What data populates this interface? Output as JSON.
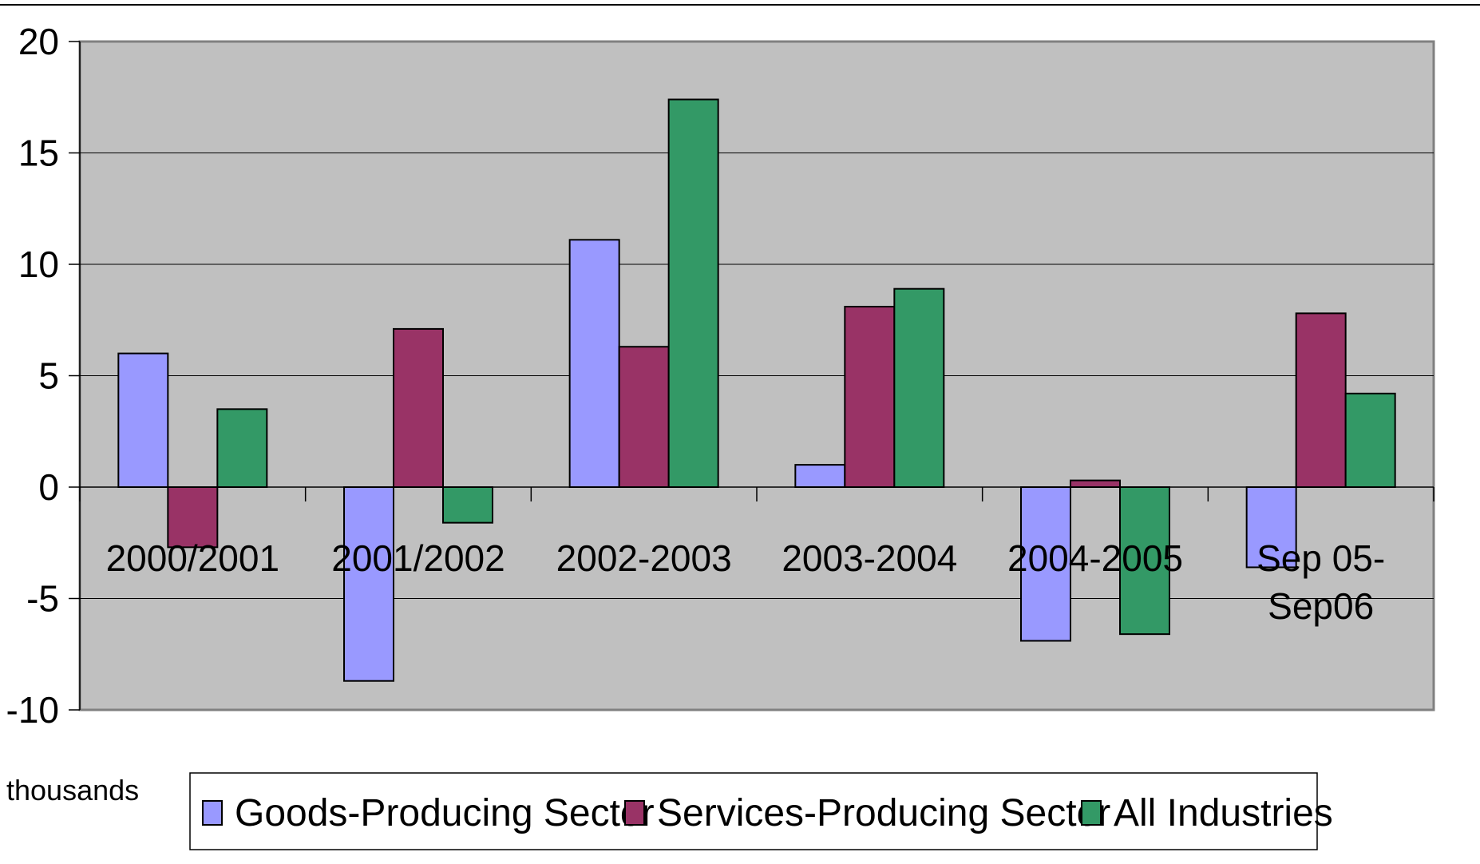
{
  "chart_data": {
    "type": "bar",
    "categories": [
      [
        "2000/2001"
      ],
      [
        "2001/2002"
      ],
      [
        "2002-2003"
      ],
      [
        "2003-2004"
      ],
      [
        "2004-2005"
      ],
      [
        "Sep 05-",
        "Sep06"
      ]
    ],
    "series": [
      {
        "name": "Goods-Producing Sector",
        "color": "#9999ff",
        "values": [
          6.0,
          -8.7,
          11.1,
          1.0,
          -6.9,
          -3.6
        ]
      },
      {
        "name": "Services-Producing Sector",
        "color": "#993366",
        "values": [
          -2.7,
          7.1,
          6.3,
          8.1,
          0.3,
          7.8
        ]
      },
      {
        "name": "All Industries",
        "color": "#339966",
        "values": [
          3.5,
          -1.6,
          17.4,
          8.9,
          -6.6,
          4.2
        ]
      }
    ],
    "ylim": [
      -10,
      20
    ],
    "yticks": [
      -10,
      -5,
      0,
      5,
      10,
      15,
      20
    ],
    "ylabel": "thousands",
    "plot_background": "#c0c0c0",
    "grid": true,
    "legend_position": "bottom"
  }
}
